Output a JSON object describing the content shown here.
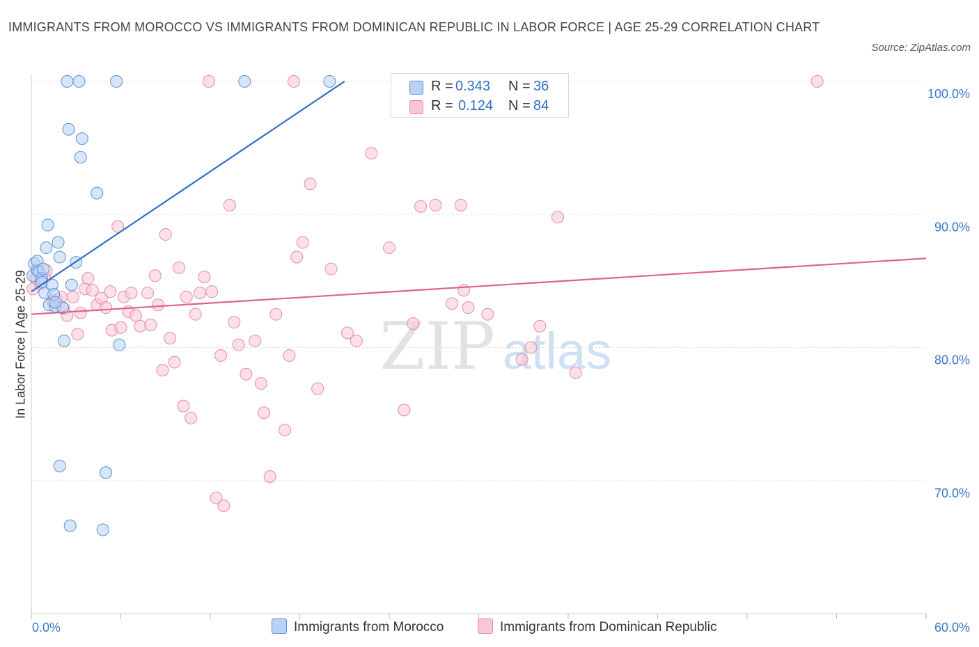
{
  "header": {
    "title": "IMMIGRANTS FROM MOROCCO VS IMMIGRANTS FROM DOMINICAN REPUBLIC IN LABOR FORCE | AGE 25-29 CORRELATION CHART",
    "source": "Source: ZipAtlas.com"
  },
  "watermark": {
    "zip": "ZIP",
    "atlas": "atlas"
  },
  "legend": {
    "morocco": {
      "r_key": "R =",
      "r_value": "0.343",
      "n_key": "N =",
      "n_value": "36"
    },
    "dominican": {
      "r_key": "R =",
      "r_value": "0.124",
      "n_key": "N =",
      "n_value": "84"
    }
  },
  "bottom_legend": {
    "morocco": "Immigrants from Morocco",
    "dominican": "Immigrants from Dominican Republic"
  },
  "colors": {
    "morocco_fill": "#b8d2f5",
    "morocco_stroke": "#5b8fd6",
    "morocco_line": "#2e6fc4",
    "dominican_fill": "#f9c6d6",
    "dominican_stroke": "#e98aa9",
    "dominican_line": "#e0608a",
    "axis_text": "#3a78c9"
  },
  "chart_data": {
    "type": "scatter",
    "title": "IMMIGRANTS FROM MOROCCO VS IMMIGRANTS FROM DOMINICAN REPUBLIC IN LABOR FORCE | AGE 25-29 CORRELATION CHART",
    "xlabel": "",
    "ylabel": "In Labor Force | Age 25-29",
    "xlim": [
      0,
      60
    ],
    "ylim": [
      60,
      100
    ],
    "x_tick_labels": [
      "0.0%",
      "60.0%"
    ],
    "y_ticks": [
      70,
      80,
      90,
      100
    ],
    "y_tick_labels": [
      "70.0%",
      "80.0%",
      "90.0%",
      "100.0%"
    ],
    "grid": true,
    "legend_placement": "top-center",
    "series": [
      {
        "name": "Immigrants from Morocco",
        "R": 0.343,
        "N": 36,
        "trend": {
          "x": [
            0,
            21
          ],
          "y": [
            84.2,
            100
          ]
        },
        "points": [
          [
            0.1,
            85.4
          ],
          [
            0.2,
            86.3
          ],
          [
            0.4,
            85.8
          ],
          [
            0.4,
            86.5
          ],
          [
            0.5,
            85.7
          ],
          [
            0.7,
            85.2
          ],
          [
            0.7,
            84.9
          ],
          [
            0.8,
            85.9
          ],
          [
            0.9,
            84.1
          ],
          [
            1.0,
            87.5
          ],
          [
            1.1,
            89.2
          ],
          [
            1.2,
            83.2
          ],
          [
            1.4,
            84.7
          ],
          [
            1.5,
            84.0
          ],
          [
            1.6,
            83.1
          ],
          [
            1.8,
            87.9
          ],
          [
            1.9,
            86.8
          ],
          [
            2.1,
            83.0
          ],
          [
            2.2,
            80.5
          ],
          [
            2.4,
            100.0
          ],
          [
            2.5,
            96.4
          ],
          [
            2.7,
            84.7
          ],
          [
            3.0,
            86.4
          ],
          [
            3.2,
            100.0
          ],
          [
            3.3,
            94.3
          ],
          [
            3.4,
            95.7
          ],
          [
            4.4,
            91.6
          ],
          [
            5.0,
            70.6
          ],
          [
            5.7,
            100.0
          ],
          [
            5.9,
            80.2
          ],
          [
            14.3,
            100.0
          ],
          [
            2.6,
            66.6
          ],
          [
            4.8,
            66.3
          ],
          [
            1.9,
            71.1
          ],
          [
            20.0,
            100.0
          ],
          [
            1.6,
            83.4
          ]
        ]
      },
      {
        "name": "Immigrants from Dominican Republic",
        "R": 0.124,
        "N": 84,
        "trend": {
          "x": [
            0,
            60
          ],
          "y": [
            82.5,
            86.7
          ]
        },
        "points": [
          [
            0.1,
            84.4
          ],
          [
            0.3,
            85.2
          ],
          [
            0.6,
            84.8
          ],
          [
            0.9,
            85.2
          ],
          [
            1.0,
            85.8
          ],
          [
            1.4,
            83.5
          ],
          [
            1.7,
            83.6
          ],
          [
            2.0,
            83.8
          ],
          [
            2.2,
            82.9
          ],
          [
            2.4,
            82.4
          ],
          [
            2.8,
            83.8
          ],
          [
            3.1,
            81.0
          ],
          [
            3.3,
            82.6
          ],
          [
            3.6,
            84.4
          ],
          [
            3.8,
            85.2
          ],
          [
            4.1,
            84.3
          ],
          [
            4.4,
            83.2
          ],
          [
            4.7,
            83.7
          ],
          [
            5.0,
            83.0
          ],
          [
            5.3,
            84.2
          ],
          [
            5.4,
            81.3
          ],
          [
            5.8,
            89.1
          ],
          [
            6.0,
            81.5
          ],
          [
            6.2,
            83.8
          ],
          [
            6.5,
            82.7
          ],
          [
            6.7,
            84.1
          ],
          [
            7.0,
            82.4
          ],
          [
            7.3,
            81.6
          ],
          [
            7.8,
            84.1
          ],
          [
            8.0,
            81.7
          ],
          [
            8.3,
            85.4
          ],
          [
            8.5,
            83.2
          ],
          [
            8.8,
            78.3
          ],
          [
            9.0,
            88.5
          ],
          [
            9.3,
            80.7
          ],
          [
            9.6,
            78.9
          ],
          [
            9.9,
            86.0
          ],
          [
            10.2,
            75.6
          ],
          [
            10.4,
            83.8
          ],
          [
            10.7,
            74.7
          ],
          [
            11.0,
            82.5
          ],
          [
            11.3,
            84.1
          ],
          [
            11.6,
            85.3
          ],
          [
            11.9,
            100.0
          ],
          [
            12.4,
            68.7
          ],
          [
            12.7,
            79.4
          ],
          [
            12.9,
            68.1
          ],
          [
            13.3,
            90.7
          ],
          [
            13.6,
            81.9
          ],
          [
            13.9,
            80.2
          ],
          [
            14.4,
            78.0
          ],
          [
            15.0,
            80.5
          ],
          [
            15.4,
            77.3
          ],
          [
            15.6,
            75.1
          ],
          [
            16.0,
            70.3
          ],
          [
            16.4,
            82.5
          ],
          [
            17.0,
            73.8
          ],
          [
            17.3,
            79.4
          ],
          [
            17.6,
            100.0
          ],
          [
            17.8,
            86.8
          ],
          [
            18.2,
            87.9
          ],
          [
            18.7,
            92.3
          ],
          [
            19.2,
            76.9
          ],
          [
            20.1,
            85.9
          ],
          [
            21.2,
            81.1
          ],
          [
            21.8,
            80.5
          ],
          [
            22.8,
            94.6
          ],
          [
            24.0,
            87.5
          ],
          [
            25.0,
            75.3
          ],
          [
            25.6,
            81.8
          ],
          [
            26.1,
            90.6
          ],
          [
            27.1,
            90.7
          ],
          [
            28.2,
            83.3
          ],
          [
            28.8,
            90.7
          ],
          [
            29.0,
            84.3
          ],
          [
            29.3,
            83.0
          ],
          [
            30.6,
            82.5
          ],
          [
            32.9,
            79.1
          ],
          [
            33.5,
            80.0
          ],
          [
            34.1,
            81.6
          ],
          [
            35.3,
            89.8
          ],
          [
            36.5,
            78.1
          ],
          [
            52.7,
            100.0
          ],
          [
            12.1,
            84.2
          ]
        ]
      }
    ]
  }
}
